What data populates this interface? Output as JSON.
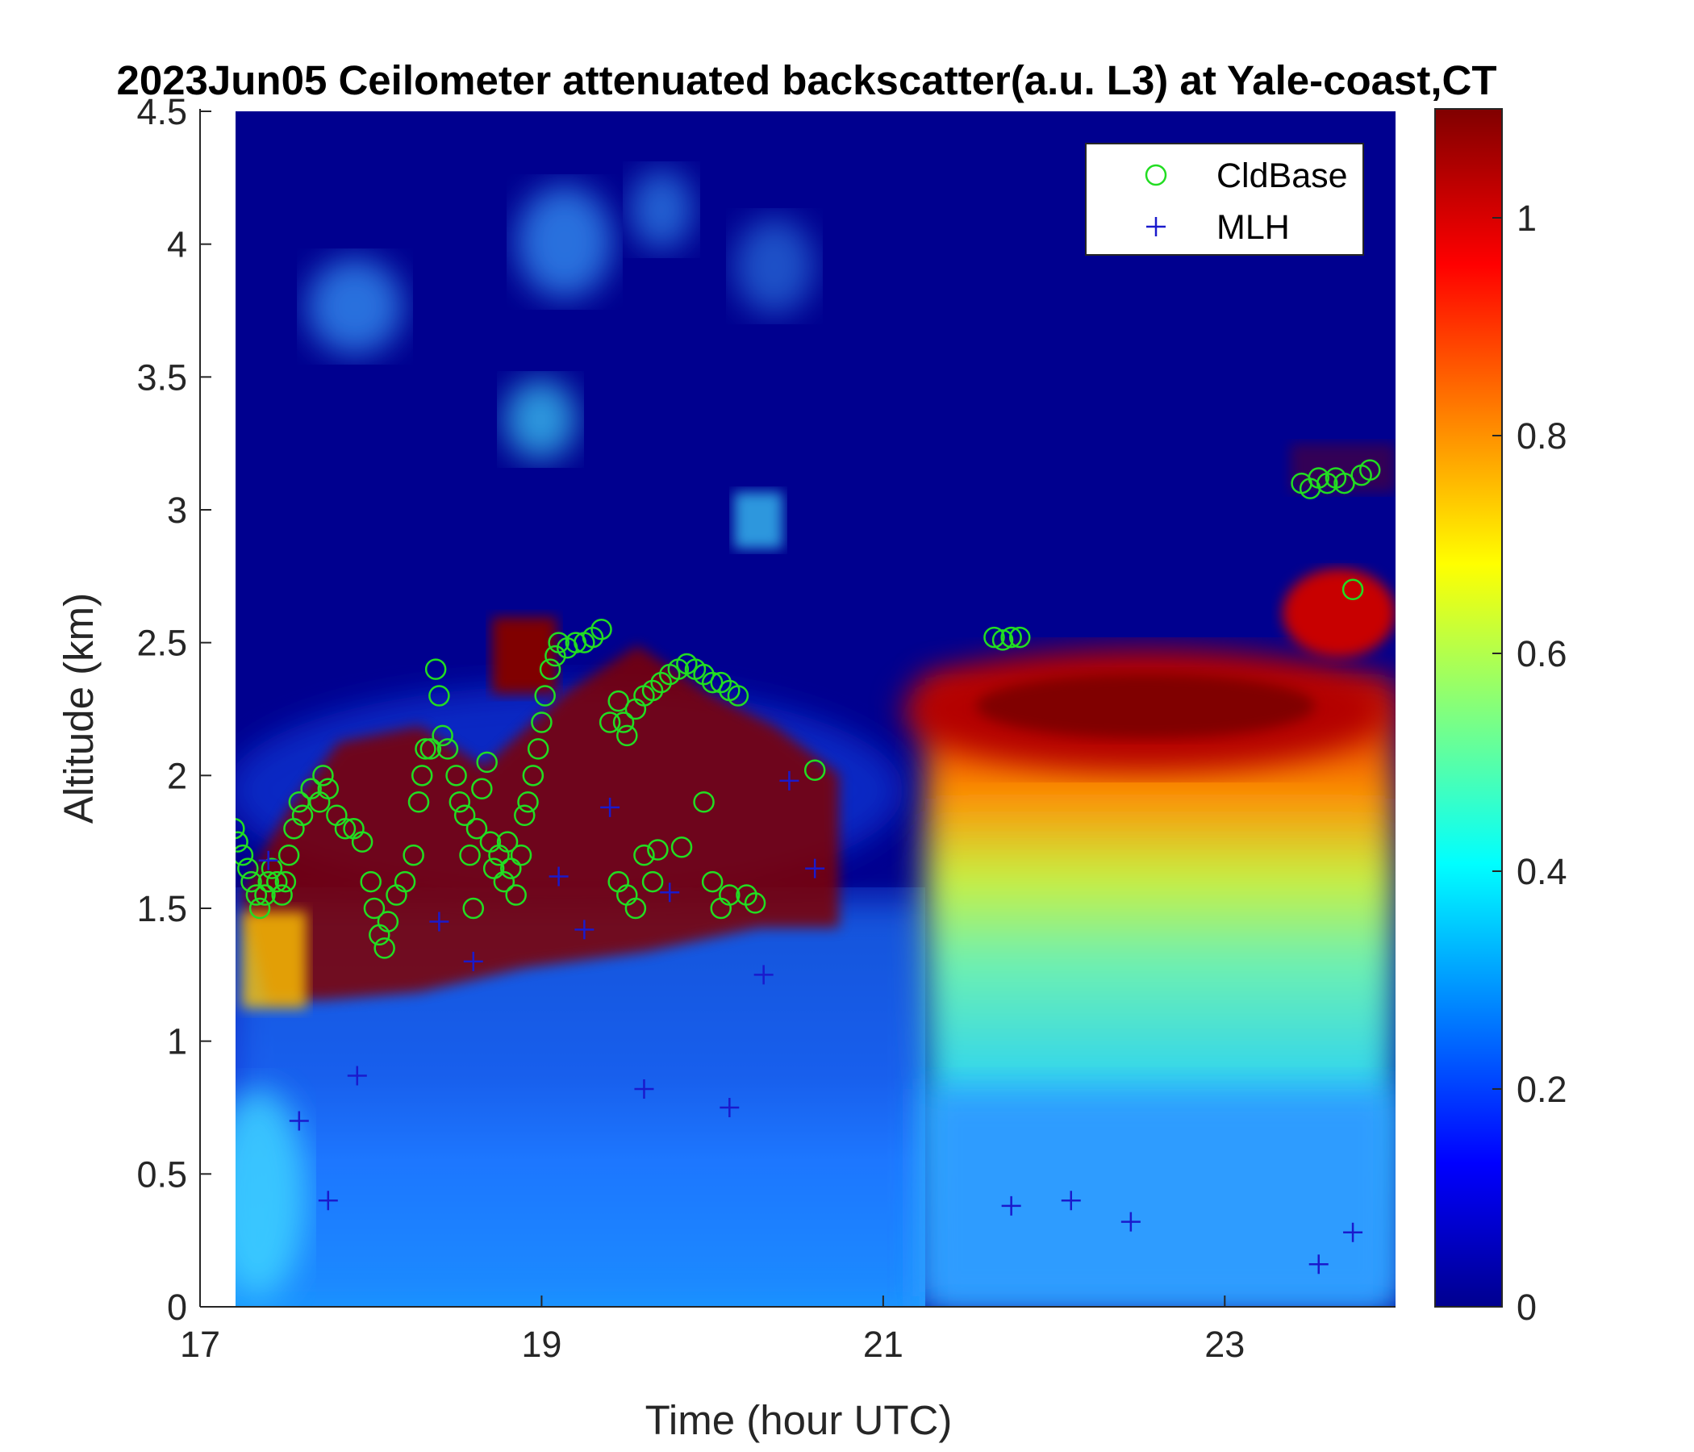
{
  "chart_data": {
    "type": "heatmap",
    "title": "2023Jun05 Ceilometer attenuated backscatter(a.u. L3) at Yale-coast,CT",
    "xlabel": "Time (hour UTC)",
    "ylabel": "Altitude (km)",
    "xlim": [
      17,
      24
    ],
    "ylim": [
      0,
      4.5
    ],
    "data_xrange": [
      17.2,
      24.0
    ],
    "x_ticks": [
      "17",
      "19",
      "21",
      "23"
    ],
    "y_ticks": [
      "0",
      "0.5",
      "1",
      "1.5",
      "2",
      "2.5",
      "3",
      "3.5",
      "4",
      "4.5"
    ],
    "colorbar": {
      "colormap": "jet",
      "clim": [
        0,
        1.1
      ],
      "ticks": [
        "0",
        "0.2",
        "0.4",
        "0.6",
        "0.8",
        "1"
      ]
    },
    "legend": {
      "location": "top-right",
      "entries": [
        {
          "name": "CldBase",
          "marker": "circle",
          "color": "#22dd22"
        },
        {
          "name": "MLH",
          "marker": "plus",
          "color": "#1a1acc"
        }
      ]
    },
    "series": [
      {
        "name": "CldBase",
        "points": [
          [
            17.2,
            1.8
          ],
          [
            17.22,
            1.75
          ],
          [
            17.25,
            1.7
          ],
          [
            17.28,
            1.65
          ],
          [
            17.3,
            1.6
          ],
          [
            17.33,
            1.55
          ],
          [
            17.35,
            1.5
          ],
          [
            17.38,
            1.55
          ],
          [
            17.4,
            1.6
          ],
          [
            17.42,
            1.65
          ],
          [
            17.45,
            1.6
          ],
          [
            17.48,
            1.55
          ],
          [
            17.5,
            1.6
          ],
          [
            17.52,
            1.7
          ],
          [
            17.55,
            1.8
          ],
          [
            17.58,
            1.9
          ],
          [
            17.6,
            1.85
          ],
          [
            17.65,
            1.95
          ],
          [
            17.7,
            1.9
          ],
          [
            17.72,
            2.0
          ],
          [
            17.75,
            1.95
          ],
          [
            17.8,
            1.85
          ],
          [
            17.85,
            1.8
          ],
          [
            17.9,
            1.8
          ],
          [
            17.95,
            1.75
          ],
          [
            18.0,
            1.6
          ],
          [
            18.02,
            1.5
          ],
          [
            18.05,
            1.4
          ],
          [
            18.08,
            1.35
          ],
          [
            18.1,
            1.45
          ],
          [
            18.15,
            1.55
          ],
          [
            18.2,
            1.6
          ],
          [
            18.25,
            1.7
          ],
          [
            18.28,
            1.9
          ],
          [
            18.3,
            2.0
          ],
          [
            18.32,
            2.1
          ],
          [
            18.35,
            2.1
          ],
          [
            18.38,
            2.4
          ],
          [
            18.4,
            2.3
          ],
          [
            18.42,
            2.15
          ],
          [
            18.45,
            2.1
          ],
          [
            18.5,
            2.0
          ],
          [
            18.52,
            1.9
          ],
          [
            18.55,
            1.85
          ],
          [
            18.58,
            1.7
          ],
          [
            18.6,
            1.5
          ],
          [
            18.62,
            1.8
          ],
          [
            18.65,
            1.95
          ],
          [
            18.68,
            2.05
          ],
          [
            18.7,
            1.75
          ],
          [
            18.72,
            1.65
          ],
          [
            18.75,
            1.7
          ],
          [
            18.78,
            1.6
          ],
          [
            18.8,
            1.75
          ],
          [
            18.82,
            1.65
          ],
          [
            18.85,
            1.55
          ],
          [
            18.88,
            1.7
          ],
          [
            18.9,
            1.85
          ],
          [
            18.92,
            1.9
          ],
          [
            18.95,
            2.0
          ],
          [
            18.98,
            2.1
          ],
          [
            19.0,
            2.2
          ],
          [
            19.02,
            2.3
          ],
          [
            19.05,
            2.4
          ],
          [
            19.08,
            2.45
          ],
          [
            19.1,
            2.5
          ],
          [
            19.15,
            2.48
          ],
          [
            19.2,
            2.5
          ],
          [
            19.25,
            2.5
          ],
          [
            19.3,
            2.52
          ],
          [
            19.35,
            2.55
          ],
          [
            19.4,
            2.2
          ],
          [
            19.45,
            2.28
          ],
          [
            19.48,
            2.2
          ],
          [
            19.5,
            2.15
          ],
          [
            19.45,
            1.6
          ],
          [
            19.5,
            1.55
          ],
          [
            19.55,
            1.5
          ],
          [
            19.6,
            1.7
          ],
          [
            19.65,
            1.6
          ],
          [
            19.68,
            1.72
          ],
          [
            19.55,
            2.25
          ],
          [
            19.6,
            2.3
          ],
          [
            19.65,
            2.32
          ],
          [
            19.7,
            2.35
          ],
          [
            19.75,
            2.38
          ],
          [
            19.8,
            2.4
          ],
          [
            19.85,
            2.42
          ],
          [
            19.9,
            2.4
          ],
          [
            19.95,
            2.38
          ],
          [
            20.0,
            2.35
          ],
          [
            20.05,
            2.35
          ],
          [
            20.1,
            2.32
          ],
          [
            20.15,
            2.3
          ],
          [
            19.82,
            1.73
          ],
          [
            19.95,
            1.9
          ],
          [
            20.0,
            1.6
          ],
          [
            20.05,
            1.5
          ],
          [
            20.1,
            1.55
          ],
          [
            20.2,
            1.55
          ],
          [
            20.25,
            1.52
          ],
          [
            20.6,
            2.02
          ],
          [
            21.65,
            2.52
          ],
          [
            21.7,
            2.51
          ],
          [
            21.75,
            2.52
          ],
          [
            21.8,
            2.52
          ],
          [
            23.45,
            3.1
          ],
          [
            23.5,
            3.08
          ],
          [
            23.55,
            3.12
          ],
          [
            23.6,
            3.1
          ],
          [
            23.65,
            3.12
          ],
          [
            23.7,
            3.1
          ],
          [
            23.75,
            2.7
          ],
          [
            23.8,
            3.13
          ],
          [
            23.85,
            3.15
          ]
        ]
      },
      {
        "name": "MLH",
        "points": [
          [
            17.4,
            1.68
          ],
          [
            17.58,
            0.7
          ],
          [
            17.75,
            0.4
          ],
          [
            17.92,
            0.87
          ],
          [
            18.4,
            1.45
          ],
          [
            18.6,
            1.3
          ],
          [
            19.1,
            1.62
          ],
          [
            19.25,
            1.42
          ],
          [
            19.4,
            1.88
          ],
          [
            19.6,
            0.82
          ],
          [
            19.75,
            1.56
          ],
          [
            20.1,
            0.75
          ],
          [
            20.3,
            1.25
          ],
          [
            20.45,
            1.98
          ],
          [
            20.6,
            1.65
          ],
          [
            21.75,
            0.38
          ],
          [
            22.1,
            0.4
          ],
          [
            22.45,
            0.32
          ],
          [
            23.55,
            0.16
          ],
          [
            23.75,
            0.28
          ]
        ]
      }
    ]
  }
}
